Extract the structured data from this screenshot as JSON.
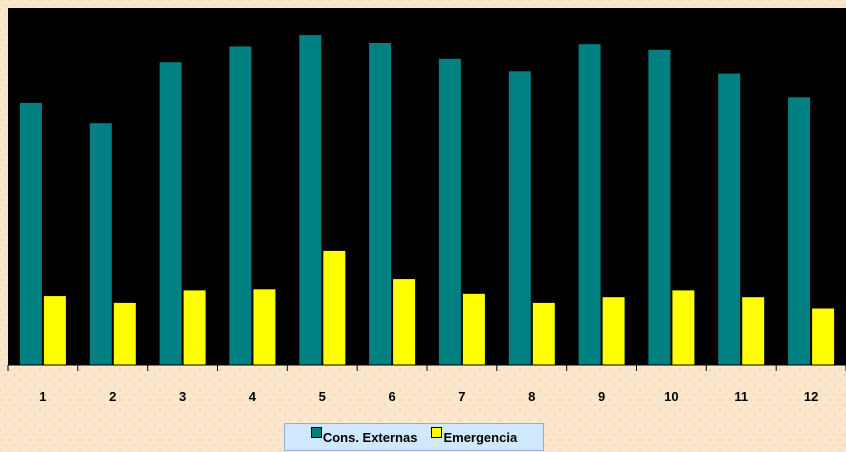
{
  "chart_data": {
    "type": "bar",
    "title": "",
    "xlabel": "",
    "ylabel": "",
    "categories": [
      "1",
      "2",
      "3",
      "4",
      "5",
      "6",
      "7",
      "8",
      "9",
      "10",
      "11",
      "12"
    ],
    "series": [
      {
        "name": "Cons. Externas",
        "color": "#008080",
        "values": [
          232,
          214,
          268,
          282,
          292,
          285,
          271,
          260,
          284,
          279,
          258,
          237
        ]
      },
      {
        "name": "Emergencia",
        "color": "#ffff00",
        "values": [
          61,
          55,
          66,
          67,
          101,
          76,
          63,
          55,
          60,
          66,
          60,
          50
        ]
      }
    ],
    "ylim": [
      0,
      316
    ],
    "grid": false,
    "legend": "bottom-center",
    "plot_background": "#000000"
  }
}
